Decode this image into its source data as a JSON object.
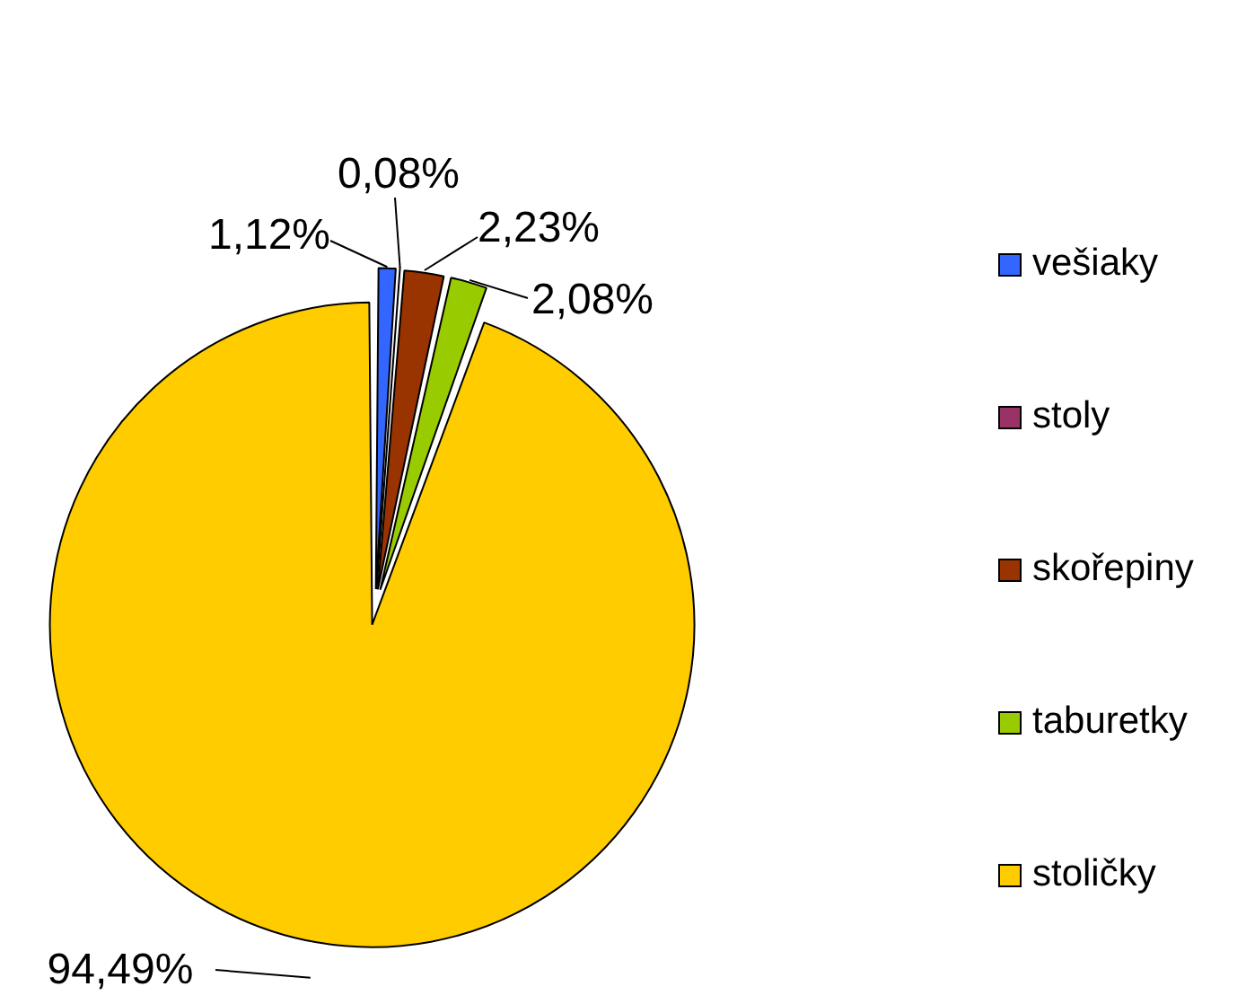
{
  "chart_data": {
    "type": "pie",
    "categories": [
      "vešiaky",
      "stoly",
      "skořepiny",
      "taburetky",
      "stoličky"
    ],
    "values": [
      1.12,
      0.08,
      2.23,
      2.08,
      94.49
    ],
    "colors": [
      "#3366ff",
      "#993366",
      "#993300",
      "#99cc00",
      "#ffcc00"
    ],
    "value_labels": [
      "1,12%",
      "0,08%",
      "2,23%",
      "2,08%",
      "94,49%"
    ],
    "legend": "right"
  }
}
